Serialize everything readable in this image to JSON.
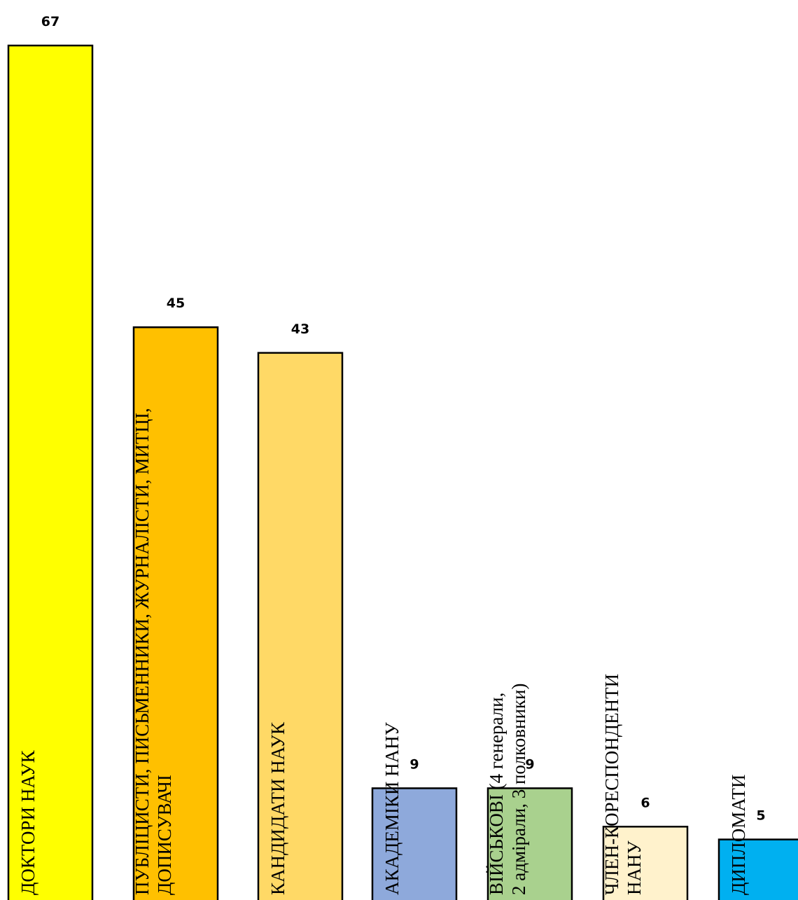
{
  "chart_data": {
    "type": "bar",
    "orientation": "vertical",
    "title": "",
    "xlabel": "",
    "ylabel": "",
    "ylim": [
      0,
      67
    ],
    "grid": false,
    "legend": "none",
    "categories": [
      [
        "ДОКТОРИ НАУК"
      ],
      [
        "ПУБЛІЦИСТИ, ПИСЬМЕННИКИ, ЖУРНАЛІСТИ, МИТЦІ,",
        "ДОПИСУВАЧІ"
      ],
      [
        "КАНДИДАТИ НАУК"
      ],
      [
        "АКАДЕМІКИ НАНУ"
      ],
      [
        "ВІЙСЬКОВІ (4 генерали,",
        "2 адмірали, 3 полковники)"
      ],
      [
        "ЧЛЕН-КОРЕСПОНДЕНТИ",
        "НАНУ"
      ],
      [
        "ДИПЛОМАТИ"
      ]
    ],
    "values": [
      67,
      45,
      43,
      9,
      9,
      6,
      5
    ],
    "colors": [
      "#FFFF00",
      "#FFC000",
      "#FFD966",
      "#8EA9DB",
      "#A9D18E",
      "#FFF2CC",
      "#00B0F0"
    ]
  }
}
